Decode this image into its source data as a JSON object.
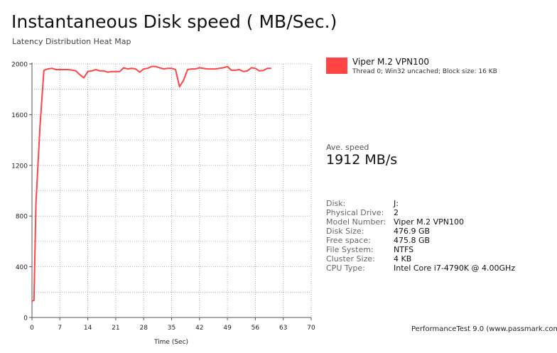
{
  "header": {
    "title": "Instantaneous Disk speed ( MB/Sec.)",
    "subtitle": "Latency Distribution Heat Map"
  },
  "legend": {
    "name": "Viper M.2 VPN100",
    "description": "Thread 0; Win32 uncached; Block size: 16 KB",
    "color": "#ff4444"
  },
  "summary": {
    "label": "Ave. speed",
    "value": "1912 MB/s"
  },
  "info": [
    {
      "key": "Disk:",
      "value": "J:"
    },
    {
      "key": "Physical Drive:",
      "value": "2"
    },
    {
      "key": "Model Number:",
      "value": "Viper M.2 VPN100"
    },
    {
      "key": "Disk Size:",
      "value": "476.9 GB"
    },
    {
      "key": "Free space:",
      "value": "475.8 GB"
    },
    {
      "key": "File System:",
      "value": "NTFS"
    },
    {
      "key": "Cluster Size:",
      "value": "4 KB"
    },
    {
      "key": "CPU Type:",
      "value": "Intel Core i7-4790K @ 4.00GHz"
    }
  ],
  "footer": "PerformanceTest 9.0 (www.passmark.com)",
  "chart_data": {
    "type": "line",
    "xlabel": "Time (Sec)",
    "ylabel": "",
    "xlim": [
      0,
      70
    ],
    "ylim": [
      0,
      2000
    ],
    "x_ticks": [
      0,
      7,
      14,
      21,
      28,
      35,
      42,
      49,
      56,
      63,
      70
    ],
    "y_ticks": [
      0,
      400,
      800,
      1200,
      1600,
      2000
    ],
    "grid": true,
    "legend_position": "right",
    "line_color": "#ff4444",
    "series": [
      {
        "name": "Viper M.2 VPN100",
        "x": [
          0,
          0.5,
          1,
          2,
          3,
          4,
          5,
          6,
          7,
          8,
          9,
          10,
          11,
          12,
          13,
          14,
          15,
          16,
          17,
          18,
          19,
          20,
          21,
          22,
          23,
          24,
          25,
          26,
          27,
          28,
          29,
          30,
          31,
          32,
          33,
          34,
          35,
          36,
          37,
          38,
          39,
          40,
          41,
          42,
          43,
          44,
          45,
          46,
          47,
          48,
          49,
          50,
          51,
          52,
          53,
          54,
          55,
          56,
          57,
          58,
          59,
          60
        ],
        "y": [
          130,
          135,
          900,
          1500,
          1950,
          1960,
          1965,
          1955,
          1955,
          1955,
          1955,
          1952,
          1945,
          1915,
          1890,
          1940,
          1945,
          1955,
          1945,
          1945,
          1935,
          1940,
          1940,
          1940,
          1970,
          1960,
          1965,
          1960,
          1935,
          1960,
          1965,
          1980,
          1980,
          1970,
          1960,
          1965,
          1965,
          1955,
          1820,
          1870,
          1955,
          1960,
          1960,
          1970,
          1965,
          1960,
          1960,
          1960,
          1965,
          1970,
          1980,
          1950,
          1950,
          1955,
          1940,
          1945,
          1970,
          1965,
          1945,
          1948,
          1965,
          1965
        ]
      }
    ]
  }
}
